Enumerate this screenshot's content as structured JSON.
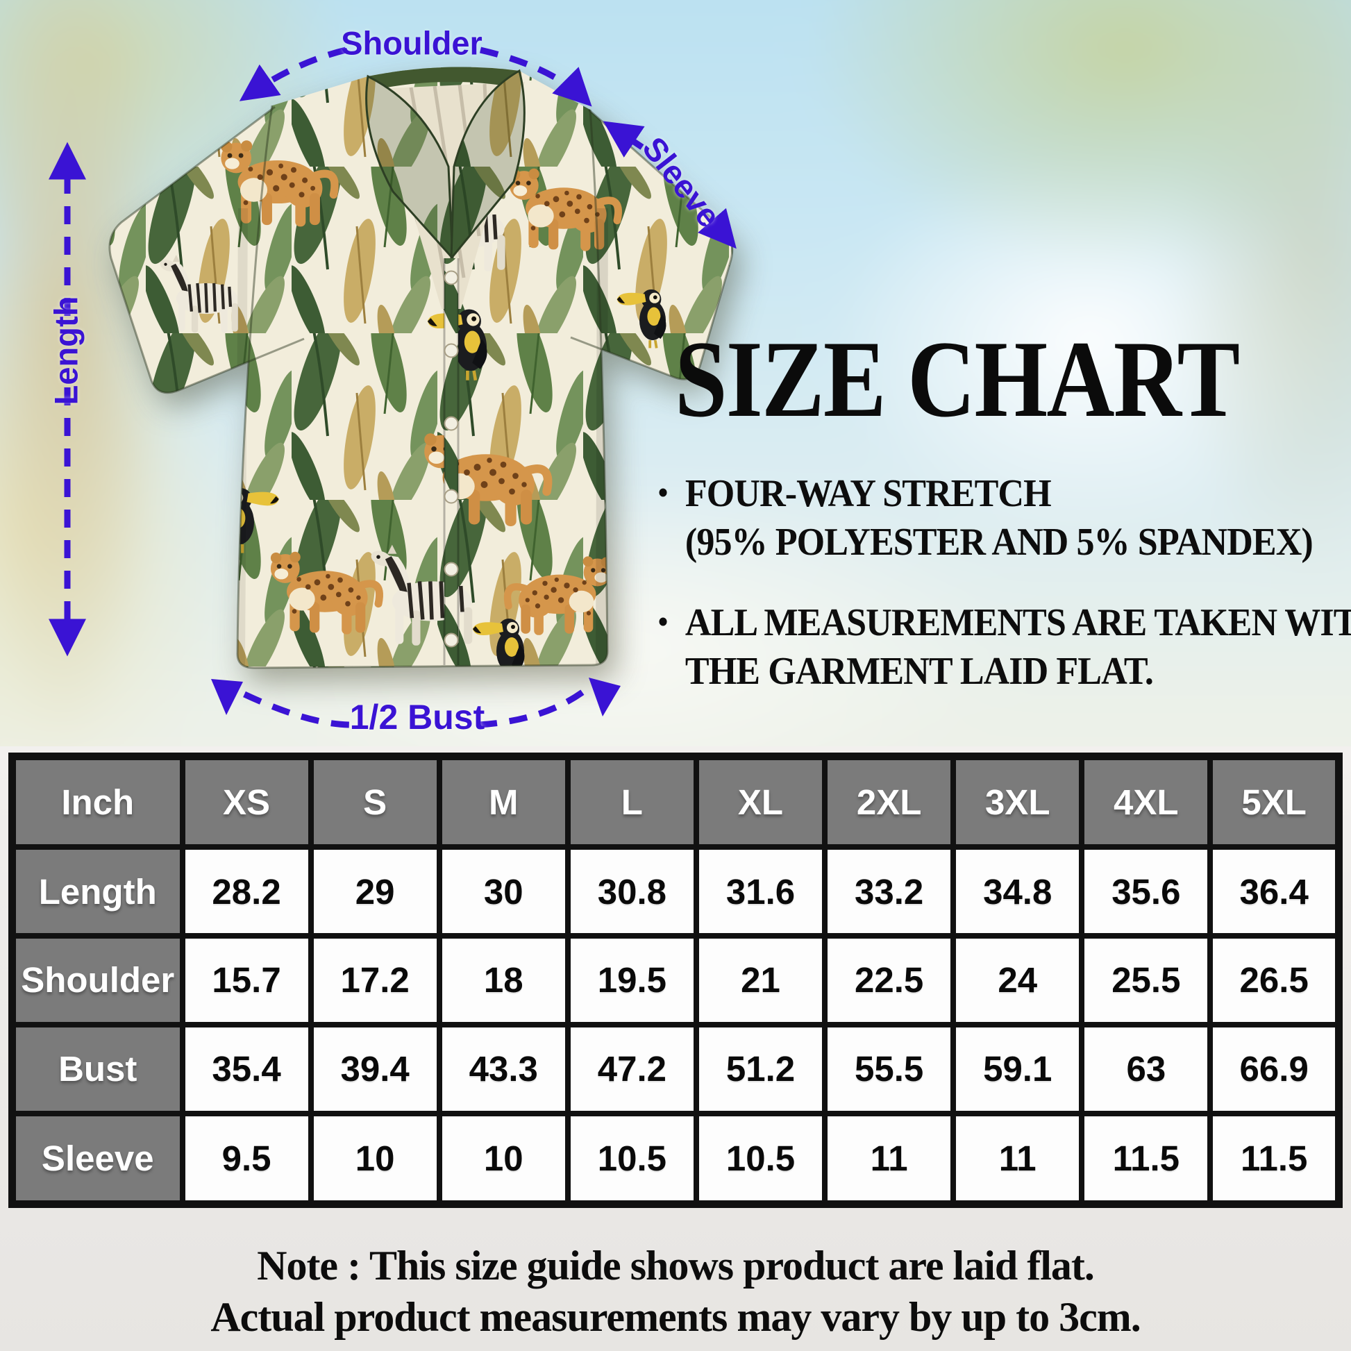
{
  "measurements": {
    "shoulder": "Shoulder",
    "sleeve": "Sleeve",
    "length": "Length",
    "half_bust": "1/2 Bust"
  },
  "size_chart": {
    "title": "SIZE CHART",
    "bullet_glyph": "•",
    "bullets": [
      {
        "line1": "FOUR-WAY STRETCH",
        "line2": "(95% POLYESTER AND 5% SPANDEX)"
      },
      {
        "line1": "ALL MEASUREMENTS ARE TAKEN WITH",
        "line2": "THE GARMENT LAID FLAT."
      }
    ]
  },
  "table": {
    "unit": "Inch",
    "sizes": [
      "XS",
      "S",
      "M",
      "L",
      "XL",
      "2XL",
      "3XL",
      "4XL",
      "5XL"
    ],
    "rows": [
      {
        "label": "Length",
        "values": [
          "28.2",
          "29",
          "30",
          "30.8",
          "31.6",
          "33.2",
          "34.8",
          "35.6",
          "36.4"
        ]
      },
      {
        "label": "Shoulder",
        "values": [
          "15.7",
          "17.2",
          "18",
          "19.5",
          "21",
          "22.5",
          "24",
          "25.5",
          "26.5"
        ]
      },
      {
        "label": "Bust",
        "values": [
          "35.4",
          "39.4",
          "43.3",
          "47.2",
          "51.2",
          "55.5",
          "59.1",
          "63",
          "66.9"
        ]
      },
      {
        "label": "Sleeve",
        "values": [
          "9.5",
          "10",
          "10",
          "10.5",
          "10.5",
          "11",
          "11",
          "11.5",
          "11.5"
        ]
      }
    ]
  },
  "note": {
    "line1": "Note : This size guide shows product are laid flat.",
    "line2": "Actual product measurements may vary by up to 3cm."
  },
  "colors": {
    "arrow_accent": "#3a13d4",
    "table_header_bg": "#7b7b7b",
    "table_border": "#111111",
    "shirt_cream": "#f2eddb",
    "leaf_dark_green": "#47663b",
    "leaf_gold": "#c9ad67"
  }
}
